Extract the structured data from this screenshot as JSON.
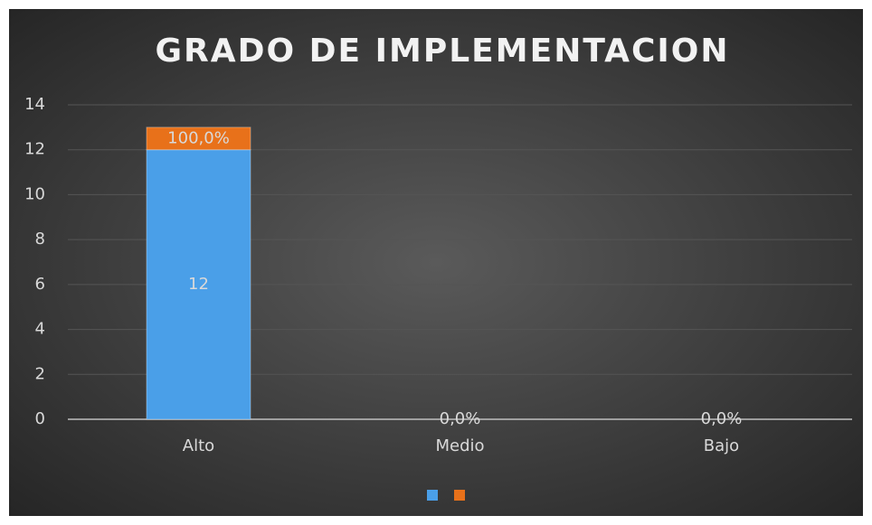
{
  "chart_data": {
    "type": "bar",
    "stacked": true,
    "title": "GRADO DE IMPLEMENTACION",
    "categories": [
      "Alto",
      "Medio",
      "Bajo"
    ],
    "series": [
      {
        "color": "#4a9fe8",
        "values": [
          12,
          0,
          0
        ],
        "value_labels": [
          "12",
          null,
          null
        ]
      },
      {
        "color": "#e8711a",
        "values": [
          1,
          0,
          0
        ],
        "value_labels": [
          "100,0%",
          "0,0%",
          "0,0%"
        ]
      }
    ],
    "ylim": [
      0,
      14
    ],
    "yticks": [
      0,
      2,
      4,
      6,
      8,
      10,
      12,
      14
    ],
    "grid": true,
    "legend": "bottom"
  }
}
